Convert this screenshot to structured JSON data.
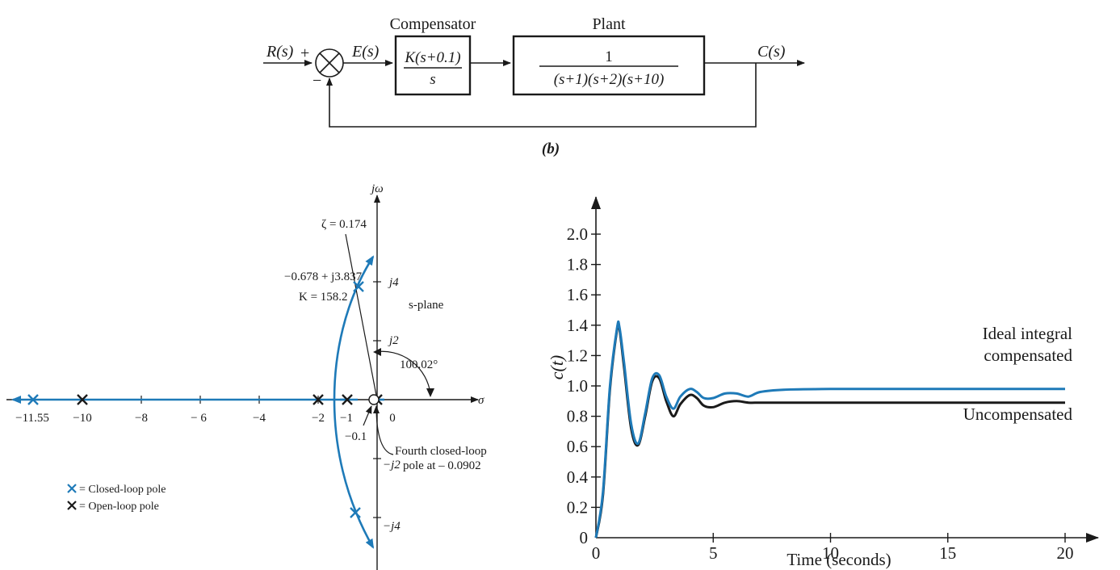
{
  "block_diagram": {
    "input": "R(s)",
    "plus": "+",
    "minus": "−",
    "error": "E(s)",
    "output": "C(s)",
    "compensator": {
      "title": "Compensator",
      "num": "K(s+0.1)",
      "den": "s"
    },
    "plant": {
      "title": "Plant",
      "num": "1",
      "den": "(s+1)(s+2)(s+10)"
    },
    "caption": "(b)"
  },
  "root_locus": {
    "axis_imag": "jω",
    "axis_real": "σ",
    "plane_label": "s-plane",
    "zeta_label": "ζ = 0.174",
    "point_label_1": "−0.678 + j3.837",
    "point_label_2": "K = 158.2",
    "angle_label": "100.02°",
    "real_ticks": [
      "−11.55",
      "−10",
      "−8",
      "− 6",
      "−4",
      "−2",
      "−1",
      "0"
    ],
    "imag_ticks": [
      "j4",
      "j2",
      "−j2",
      "−j4"
    ],
    "zero_label": "−0.1",
    "fourth_pole_1": "Fourth closed-loop",
    "fourth_pole_2": "pole at – 0.0902",
    "legend_closed": "= Closed-loop pole",
    "legend_open": "= Open-loop pole",
    "colors": {
      "closed_loop": "#1e7ab8",
      "open_loop": "#1a1a1a",
      "locus": "#1e7ab8"
    }
  },
  "step_response": {
    "ylabel": "c(t)",
    "xlabel": "Time (seconds)",
    "y_ticks": [
      "0",
      "0.2",
      "0.4",
      "0.6",
      "0.8",
      "1.0",
      "1.2",
      "1.4",
      "1.6",
      "1.8",
      "2.0"
    ],
    "x_ticks": [
      "0",
      "5",
      "10",
      "15",
      "20"
    ],
    "label_compensated_1": "Ideal integral",
    "label_compensated_2": "compensated",
    "label_uncompensated": "Uncompensated",
    "colors": {
      "compensated": "#1e7ab8",
      "uncompensated": "#1a1a1a"
    }
  },
  "chart_data": {
    "type": "line",
    "xlabel": "Time (seconds)",
    "ylabel": "c(t)",
    "xlim": [
      0,
      20
    ],
    "ylim": [
      0,
      2.0
    ],
    "series": [
      {
        "name": "Ideal integral compensated",
        "x": [
          0,
          0.3,
          0.6,
          0.9,
          1.0,
          1.2,
          1.5,
          1.8,
          2.1,
          2.4,
          2.7,
          3.0,
          3.3,
          3.6,
          4.0,
          4.3,
          4.6,
          5.0,
          5.5,
          6.0,
          6.5,
          7.0,
          8.0,
          10,
          12,
          15,
          20
        ],
        "y": [
          0,
          0.3,
          1.0,
          1.38,
          1.39,
          1.15,
          0.75,
          0.62,
          0.82,
          1.05,
          1.07,
          0.93,
          0.85,
          0.93,
          0.98,
          0.96,
          0.92,
          0.92,
          0.95,
          0.95,
          0.93,
          0.96,
          0.975,
          0.98,
          0.98,
          0.98,
          0.98
        ]
      },
      {
        "name": "Uncompensated",
        "x": [
          0,
          0.3,
          0.6,
          0.9,
          1.0,
          1.2,
          1.5,
          1.8,
          2.1,
          2.4,
          2.7,
          3.0,
          3.3,
          3.6,
          4.0,
          4.3,
          4.6,
          5.0,
          5.5,
          6.0,
          6.5,
          7.0,
          8.0,
          10,
          12,
          15,
          20
        ],
        "y": [
          0,
          0.28,
          0.98,
          1.37,
          1.38,
          1.12,
          0.72,
          0.61,
          0.8,
          1.03,
          1.05,
          0.9,
          0.8,
          0.88,
          0.94,
          0.92,
          0.87,
          0.86,
          0.89,
          0.9,
          0.89,
          0.89,
          0.89,
          0.89,
          0.89,
          0.89,
          0.89
        ]
      }
    ]
  }
}
